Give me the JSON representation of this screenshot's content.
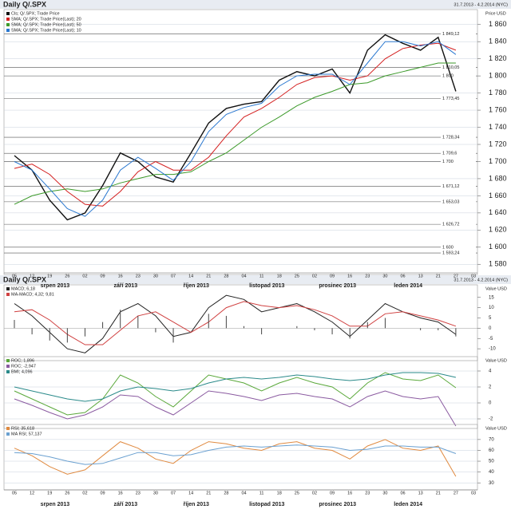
{
  "chart_data": [
    {
      "type": "line",
      "title": "Daily Q/.SPX",
      "subtitle": "31.7.2013 - 4.2.2014 (NYC)",
      "y_label": "Price USD",
      "categories": [
        "05",
        "12",
        "19",
        "26",
        "02",
        "09",
        "16",
        "23",
        "30",
        "07",
        "14",
        "21",
        "28",
        "04",
        "11",
        "18",
        "25",
        "02",
        "09",
        "16",
        "23",
        "30",
        "06",
        "13",
        "21",
        "27",
        "03"
      ],
      "months": [
        "srpen 2013",
        "září 2013",
        "říjen 2013",
        "listopad 2013",
        "prosinec 2013",
        "leden 2014"
      ],
      "ylim": [
        1570,
        1870
      ],
      "yticks": [
        {
          "value": 1580,
          "label": "1 580"
        },
        {
          "value": 1600,
          "label": "1 600"
        },
        {
          "value": 1620,
          "label": "1 620"
        },
        {
          "value": 1640,
          "label": "1 640"
        },
        {
          "value": 1660,
          "label": "1 660"
        },
        {
          "value": 1680,
          "label": "1 680"
        },
        {
          "value": 1700,
          "label": "1 700"
        },
        {
          "value": 1720,
          "label": "1 720"
        },
        {
          "value": 1740,
          "label": "1 740"
        },
        {
          "value": 1760,
          "label": "1 760"
        },
        {
          "value": 1780,
          "label": "1 780"
        },
        {
          "value": 1800,
          "label": "1 800"
        },
        {
          "value": 1820,
          "label": "1 820"
        },
        {
          "value": 1840,
          "label": "1 840"
        },
        {
          "value": 1860,
          "label": "1 860"
        }
      ],
      "levels": [
        {
          "value": 1849.12,
          "label": "1 849,12"
        },
        {
          "value": 1810.05,
          "label": "1 810,05"
        },
        {
          "value": 1800,
          "label": "1 800"
        },
        {
          "value": 1773.45,
          "label": "1 773,45"
        },
        {
          "value": 1728.34,
          "label": "1 728,34"
        },
        {
          "value": 1709.6,
          "label": "1 709,6"
        },
        {
          "value": 1700,
          "label": "1 700"
        },
        {
          "value": 1671.12,
          "label": "1 671,12"
        },
        {
          "value": 1653.03,
          "label": "1 653,03"
        },
        {
          "value": 1626.72,
          "label": "1 626,72"
        },
        {
          "value": 1600,
          "label": "1 600"
        },
        {
          "value": 1593.24,
          "label": "1 593,24"
        }
      ],
      "grid": true,
      "series": [
        {
          "name": "Cls; Q/.SPX; Trade Price",
          "color": "#111111",
          "values": [
            1707,
            1690,
            1655,
            1632,
            1640,
            1672,
            1710,
            1700,
            1682,
            1676,
            1710,
            1745,
            1762,
            1767,
            1770,
            1795,
            1805,
            1800,
            1808,
            1780,
            1830,
            1848,
            1838,
            1830,
            1845,
            1782,
            null
          ]
        },
        {
          "name": "SMA; Q/.SPX; Trade Price(Last); 20",
          "color": "#d42020",
          "values": [
            1692,
            1697,
            1685,
            1665,
            1650,
            1648,
            1665,
            1688,
            1700,
            1690,
            1690,
            1705,
            1730,
            1752,
            1762,
            1775,
            1790,
            1798,
            1800,
            1795,
            1800,
            1820,
            1832,
            1836,
            1838,
            1830,
            null
          ]
        },
        {
          "name": "SMA; Q/.SPX; Trade Price(Last); 50",
          "color": "#3c9a2a",
          "values": [
            1650,
            1660,
            1665,
            1668,
            1665,
            1668,
            1675,
            1680,
            1685,
            1685,
            1688,
            1700,
            1710,
            1725,
            1740,
            1752,
            1765,
            1775,
            1782,
            1790,
            1792,
            1800,
            1805,
            1810,
            1815,
            1815,
            null
          ]
        },
        {
          "name": "SMA; Q/.SPX; Trade Price(Last); 10",
          "color": "#2a78d0",
          "values": [
            1700,
            1690,
            1668,
            1645,
            1636,
            1655,
            1690,
            1705,
            1692,
            1678,
            1700,
            1735,
            1755,
            1763,
            1768,
            1788,
            1800,
            1802,
            1802,
            1790,
            1815,
            1840,
            1840,
            1835,
            1840,
            1825,
            null
          ]
        }
      ]
    },
    {
      "type": "line",
      "title": "Daily Q/.SPX",
      "subtitle": "31.7.2013 - 4.2.2014 (NYC)",
      "y_label": "Value USD",
      "ylim": [
        -15,
        18
      ],
      "yticks": [
        -10,
        -5,
        0,
        5,
        10,
        15
      ],
      "grid": false,
      "series": [
        {
          "name": "MACD; 6,18",
          "color": "#222222",
          "values": [
            12,
            6,
            -2,
            -10,
            -12,
            -5,
            8,
            12,
            6,
            -4,
            -2,
            10,
            16,
            14,
            8,
            10,
            12,
            8,
            3,
            -4,
            4,
            12,
            8,
            5,
            3,
            -3,
            null
          ]
        },
        {
          "name": "MA-MACD; 4,32; 9,81",
          "color": "#d04040",
          "values": [
            8,
            9,
            4,
            -3,
            -8,
            -8,
            -1,
            6,
            8,
            3,
            -2,
            3,
            10,
            13,
            11,
            10,
            11,
            9,
            6,
            1,
            1,
            7,
            8,
            6,
            4,
            1,
            null
          ]
        },
        {
          "style": "bar",
          "color": "#444444",
          "values": [
            4,
            -3,
            -6,
            -7,
            -4,
            3,
            9,
            6,
            -2,
            -7,
            0,
            7,
            6,
            1,
            -3,
            0,
            1,
            -1,
            -3,
            -5,
            3,
            5,
            0,
            -1,
            -1,
            -4,
            null
          ]
        }
      ]
    },
    {
      "type": "line",
      "y_label": "Value USD",
      "ylim": [
        -3,
        5
      ],
      "yticks": [
        -2,
        0,
        2,
        4
      ],
      "grid": true,
      "series": [
        {
          "name": "ROC; 1,896",
          "color": "#5aa83a",
          "values": [
            1.5,
            0.5,
            -0.5,
            -1.5,
            -1.2,
            0.5,
            3.5,
            2.5,
            0.8,
            -0.5,
            1.5,
            3.5,
            3,
            2.5,
            1.5,
            2.5,
            3.2,
            2.5,
            2,
            0.5,
            2.5,
            3.8,
            3,
            2.8,
            3.5,
            1.9,
            null
          ]
        },
        {
          "name": "ROC; -2,947",
          "color": "#8a5aa0",
          "values": [
            0.5,
            -0.3,
            -1.2,
            -2,
            -1.5,
            -0.5,
            1,
            0.8,
            -0.5,
            -1.5,
            0,
            1.5,
            1.2,
            0.8,
            0.3,
            1,
            1.2,
            0.8,
            0.5,
            -0.5,
            0.8,
            1.5,
            0.8,
            0.5,
            0.8,
            -2.9,
            null
          ]
        },
        {
          "name": "BMI; 4,096",
          "color": "#2a8a8a",
          "values": [
            2,
            1.5,
            1,
            0.5,
            0.2,
            0.5,
            1.5,
            2,
            1.8,
            1.5,
            1.8,
            2.5,
            3,
            3.2,
            3,
            3.2,
            3.5,
            3.3,
            3,
            2.8,
            3,
            3.5,
            3.8,
            3.8,
            3.7,
            3.2,
            null
          ]
        }
      ]
    },
    {
      "type": "line",
      "y_label": "Value USD",
      "ylim": [
        25,
        78
      ],
      "yticks": [
        30,
        40,
        50,
        60,
        70
      ],
      "grid": true,
      "series": [
        {
          "name": "RSI; 35,618",
          "color": "#e08a40",
          "values": [
            62,
            55,
            45,
            38,
            42,
            55,
            68,
            62,
            52,
            48,
            60,
            68,
            66,
            62,
            60,
            66,
            68,
            62,
            60,
            52,
            64,
            70,
            62,
            60,
            64,
            36,
            null
          ]
        },
        {
          "name": "MA RSI; 57,137",
          "color": "#6aa0d0",
          "values": [
            58,
            57,
            54,
            50,
            47,
            48,
            53,
            58,
            58,
            55,
            56,
            60,
            63,
            64,
            63,
            64,
            65,
            64,
            63,
            60,
            61,
            64,
            64,
            63,
            63,
            57,
            null
          ]
        }
      ]
    }
  ]
}
